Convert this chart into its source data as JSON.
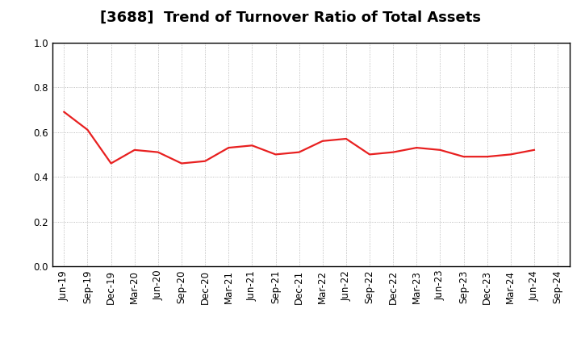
{
  "title": "[3688]  Trend of Turnover Ratio of Total Assets",
  "x_labels": [
    "Jun-19",
    "Sep-19",
    "Dec-19",
    "Mar-20",
    "Jun-20",
    "Sep-20",
    "Dec-20",
    "Mar-21",
    "Jun-21",
    "Sep-21",
    "Dec-21",
    "Mar-22",
    "Jun-22",
    "Sep-22",
    "Dec-22",
    "Mar-23",
    "Jun-23",
    "Sep-23",
    "Dec-23",
    "Mar-24",
    "Jun-24",
    "Sep-24"
  ],
  "y_values": [
    0.69,
    0.61,
    0.46,
    0.52,
    0.51,
    0.46,
    0.47,
    0.53,
    0.54,
    0.5,
    0.51,
    0.56,
    0.57,
    0.5,
    0.51,
    0.53,
    0.52,
    0.49,
    0.49,
    0.5,
    0.52,
    null
  ],
  "line_color": "#e82020",
  "ylim": [
    0.0,
    1.0
  ],
  "yticks": [
    0.0,
    0.2,
    0.4,
    0.6,
    0.8,
    1.0
  ],
  "background_color": "#ffffff",
  "grid_color": "#aaaaaa",
  "title_fontsize": 13,
  "tick_fontsize": 8.5,
  "line_width": 1.6
}
